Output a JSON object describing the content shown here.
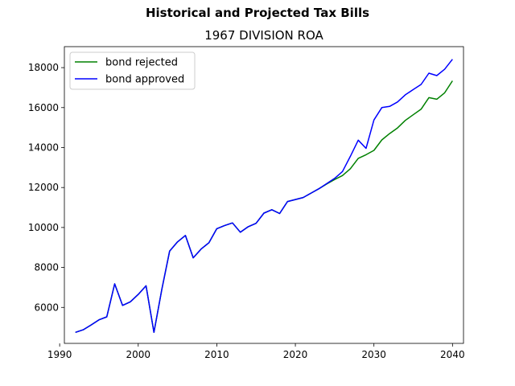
{
  "figure": {
    "suptitle": "Historical and Projected Tax Bills",
    "title": "1967 DIVISION ROA"
  },
  "chart_data": {
    "type": "line",
    "title": "1967 DIVISION ROA",
    "suptitle": "Historical and Projected Tax Bills",
    "xlabel": "",
    "ylabel": "",
    "xlim": [
      1990.6,
      2041.4
    ],
    "ylim": [
      4200,
      19050
    ],
    "xticks": [
      1990,
      2000,
      2010,
      2020,
      2030,
      2040
    ],
    "yticks": [
      6000,
      8000,
      10000,
      12000,
      14000,
      16000,
      18000
    ],
    "grid": false,
    "legend_position": "top-left",
    "series": [
      {
        "name": "bond rejected",
        "color": "#008000",
        "x": [
          1992,
          1993,
          1994,
          1995,
          1996,
          1997,
          1998,
          1999,
          2000,
          2001,
          2002,
          2003,
          2004,
          2005,
          2006,
          2007,
          2008,
          2009,
          2010,
          2011,
          2012,
          2013,
          2014,
          2015,
          2016,
          2017,
          2018,
          2019,
          2020,
          2021,
          2022,
          2023,
          2024,
          2025,
          2026,
          2027,
          2028,
          2029,
          2030,
          2031,
          2032,
          2033,
          2034,
          2035,
          2036,
          2037,
          2038,
          2039,
          2040
        ],
        "y": [
          4750,
          4880,
          5120,
          5380,
          5530,
          7180,
          6100,
          6280,
          6650,
          7080,
          4750,
          6900,
          8820,
          9280,
          9600,
          8480,
          8920,
          9240,
          9940,
          10100,
          10230,
          9760,
          10040,
          10210,
          10720,
          10890,
          10700,
          11300,
          11400,
          11500,
          11720,
          11940,
          12180,
          12400,
          12600,
          12940,
          13460,
          13640,
          13860,
          14380,
          14700,
          14980,
          15360,
          15640,
          15920,
          16500,
          16420,
          16740,
          17340
        ]
      },
      {
        "name": "bond approved",
        "color": "#0000ff",
        "x": [
          1992,
          1993,
          1994,
          1995,
          1996,
          1997,
          1998,
          1999,
          2000,
          2001,
          2002,
          2003,
          2004,
          2005,
          2006,
          2007,
          2008,
          2009,
          2010,
          2011,
          2012,
          2013,
          2014,
          2015,
          2016,
          2017,
          2018,
          2019,
          2020,
          2021,
          2022,
          2023,
          2024,
          2025,
          2026,
          2027,
          2028,
          2029,
          2030,
          2031,
          2032,
          2033,
          2034,
          2035,
          2036,
          2037,
          2038,
          2039,
          2040
        ],
        "y": [
          4750,
          4880,
          5120,
          5380,
          5530,
          7180,
          6100,
          6280,
          6650,
          7080,
          4750,
          6900,
          8820,
          9280,
          9600,
          8480,
          8920,
          9240,
          9940,
          10100,
          10230,
          9760,
          10040,
          10210,
          10720,
          10890,
          10700,
          11300,
          11400,
          11500,
          11720,
          11940,
          12200,
          12460,
          12800,
          13560,
          14370,
          13960,
          15380,
          16000,
          16060,
          16280,
          16640,
          16900,
          17160,
          17720,
          17600,
          17920,
          18420
        ]
      }
    ]
  }
}
